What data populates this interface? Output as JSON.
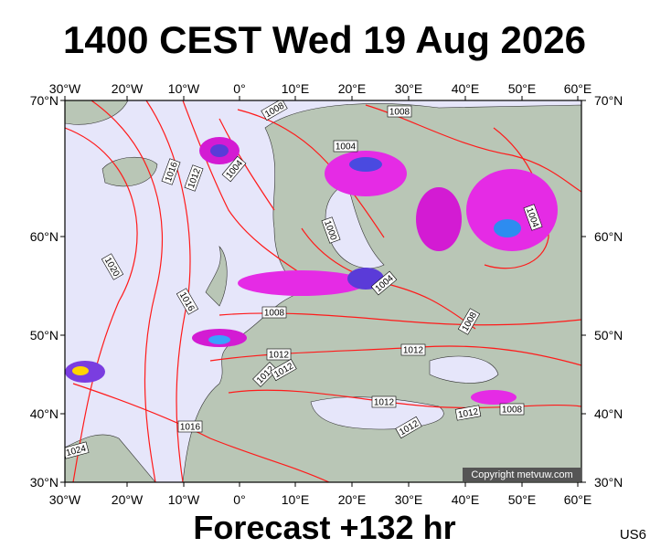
{
  "title": "1400 CEST Wed 19 Aug 2026",
  "footer": "Forecast +132 hr",
  "model": "US6",
  "copyright": "Copyright metvuw.com",
  "lon_labels": [
    "30°W",
    "20°W",
    "10°W",
    "0°",
    "10°E",
    "20°E",
    "30°E",
    "40°E",
    "50°E",
    "60°E"
  ],
  "lat_labels": [
    "70°N",
    "60°N",
    "50°N",
    "40°N",
    "30°N"
  ],
  "isobar_labels": [
    "1008",
    "1008",
    "1004",
    "1016",
    "1012",
    "1004",
    "1000",
    "1004",
    "1020",
    "1004",
    "1016",
    "1008",
    "1008",
    "1012",
    "1012",
    "1012",
    "1012",
    "1012",
    "1008",
    "1012",
    "1016",
    "1012",
    "1024"
  ]
}
